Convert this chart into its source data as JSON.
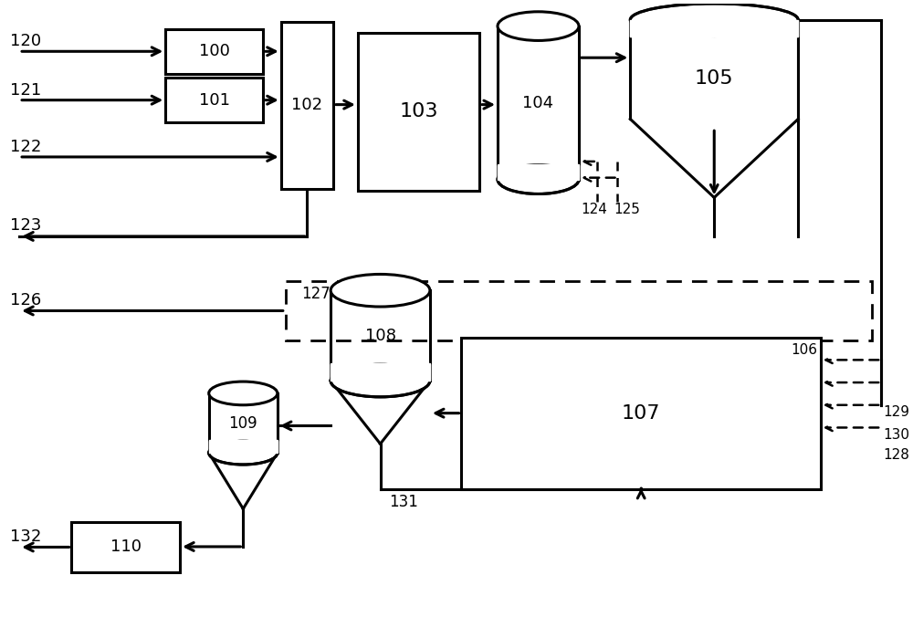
{
  "bg": "#ffffff",
  "lc": "#000000",
  "lw": 2.2,
  "fw": 10.0,
  "fh": 6.76
}
